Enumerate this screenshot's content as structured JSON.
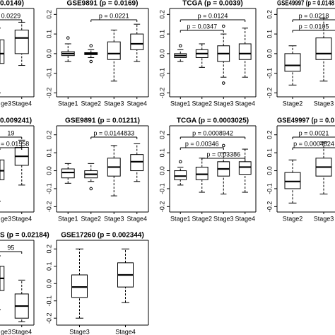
{
  "chart_data": [
    {
      "type": "box",
      "title": "0.0149)",
      "categories": [
        "ge3",
        "Stage4"
      ],
      "ylim": [
        -0.22,
        0.23
      ],
      "boxes": [
        {
          "min": -0.2,
          "q1": -0.05,
          "median": 0.0,
          "q3": 0.07,
          "max": 0.13
        },
        {
          "min": -0.06,
          "q1": 0.0,
          "median": 0.08,
          "q3": 0.12,
          "max": 0.16
        }
      ],
      "comparisons": [
        {
          "label": "0.0229",
          "between": [
            "ge3",
            "Stage4"
          ]
        }
      ]
    },
    {
      "type": "box",
      "title": "GSE9891 (p = 0.0169)",
      "categories": [
        "Stage1",
        "Stage2",
        "Stage3",
        "Stage4"
      ],
      "ylim": [
        -0.22,
        0.23
      ],
      "yticks": [
        -0.2,
        -0.1,
        {
          "value": 0,
          "label": "0.0"
        },
        0.1,
        0.2
      ],
      "boxes": [
        {
          "min": -0.04,
          "q1": -0.01,
          "median": 0.0,
          "q3": 0.01,
          "max": 0.05,
          "outliers": [
            0.08
          ]
        },
        {
          "min": -0.02,
          "q1": -0.005,
          "median": 0.0,
          "q3": 0.005,
          "max": 0.02,
          "outliers": [
            0.04,
            -0.04
          ]
        },
        {
          "min": -0.14,
          "q1": -0.03,
          "median": 0.0,
          "q3": 0.06,
          "max": 0.12
        },
        {
          "min": -0.04,
          "q1": 0.02,
          "median": 0.05,
          "q3": 0.1,
          "max": 0.15
        }
      ],
      "comparisons": [
        {
          "label": "p = 0.0221",
          "between": [
            "Stage2",
            "Stage4"
          ]
        }
      ]
    },
    {
      "type": "box",
      "title": "TCGA (p = 0.0039)",
      "categories": [
        "Stage1",
        "Stage2",
        "Stage3",
        "Stage4"
      ],
      "ylim": [
        -0.22,
        0.23
      ],
      "yticks": [
        -0.2,
        -0.1,
        {
          "value": 0,
          "label": "0.0"
        },
        0.1,
        0.2
      ],
      "boxes": [
        {
          "min": -0.04,
          "q1": -0.02,
          "median": -0.01,
          "q3": 0.0,
          "max": 0.02,
          "outliers": [
            0.04
          ]
        },
        {
          "min": -0.07,
          "q1": -0.02,
          "median": 0.0,
          "q3": 0.02,
          "max": 0.05
        },
        {
          "min": -0.12,
          "q1": -0.04,
          "median": 0.0,
          "q3": 0.04,
          "max": 0.1,
          "outliers": [
            0.14,
            -0.15
          ]
        },
        {
          "min": -0.12,
          "q1": -0.03,
          "median": 0.0,
          "q3": 0.05,
          "max": 0.13
        }
      ],
      "comparisons": [
        {
          "label": "p = 0.0124",
          "between": [
            "Stage1",
            "Stage4"
          ]
        },
        {
          "label": "p = 0.0347",
          "between": [
            "Stage1",
            "Stage3"
          ]
        }
      ]
    },
    {
      "type": "box",
      "title": "GSE49997 (p = 0.0148",
      "categories": [
        "Stage2",
        "Stage3"
      ],
      "ylim": [
        -0.22,
        0.23
      ],
      "yticks": [
        -0.2,
        -0.1,
        {
          "value": 0,
          "label": "0.0"
        },
        0.1,
        0.2
      ],
      "boxes": [
        {
          "min": -0.16,
          "q1": -0.09,
          "median": -0.06,
          "q3": 0.0,
          "max": 0.04
        },
        {
          "min": -0.14,
          "q1": -0.03,
          "median": 0.0,
          "q3": 0.08,
          "max": 0.18
        }
      ],
      "comparisons": [
        {
          "label": "p = 0.0218",
          "between": [
            "Stage2",
            "Stage3"
          ]
        },
        {
          "label": "p = 0.0105",
          "between": [
            "Stage2",
            "Stage3"
          ]
        }
      ]
    },
    {
      "type": "box",
      "title": "0.009241)",
      "categories": [
        "ge3",
        "Stage4"
      ],
      "ylim": [
        -0.23,
        0.25
      ],
      "boxes": [
        {
          "min": -0.17,
          "q1": -0.05,
          "median": 0.0,
          "q3": 0.06,
          "max": 0.12
        },
        {
          "min": -0.08,
          "q1": 0.03,
          "median": 0.08,
          "q3": 0.13,
          "max": 0.17
        }
      ],
      "comparisons": [
        {
          "label": "19",
          "between": [
            "ge3",
            "Stage4"
          ]
        },
        {
          "label": "= 0.01558",
          "between": [
            "ge3",
            "Stage4"
          ]
        }
      ]
    },
    {
      "type": "box",
      "title": "GSE9891 (p = 0.01211)",
      "categories": [
        "Stage1",
        "Stage2",
        "Stage3",
        "Stage4"
      ],
      "ylim": [
        -0.23,
        0.25
      ],
      "yticks": [
        -0.2,
        -0.1,
        {
          "value": 0,
          "label": "0.0"
        },
        0.1,
        0.2
      ],
      "boxes": [
        {
          "min": -0.07,
          "q1": -0.04,
          "median": -0.01,
          "q3": 0.01,
          "max": 0.04
        },
        {
          "min": -0.06,
          "q1": -0.04,
          "median": -0.02,
          "q3": 0.0,
          "max": 0.04,
          "outliers": [
            -0.1
          ]
        },
        {
          "min": -0.14,
          "q1": -0.03,
          "median": 0.02,
          "q3": 0.07,
          "max": 0.14
        },
        {
          "min": -0.06,
          "q1": 0.0,
          "median": 0.05,
          "q3": 0.09,
          "max": 0.15
        }
      ],
      "comparisons": [
        {
          "label": "p = 0.0144833",
          "between": [
            "Stage2",
            "Stage4"
          ]
        }
      ]
    },
    {
      "type": "box",
      "title": "TCGA (p = 0.0003025)",
      "categories": [
        "Stage1",
        "Stage2",
        "Stage3",
        "Stage4"
      ],
      "ylim": [
        -0.23,
        0.25
      ],
      "yticks": [
        -0.2,
        -0.1,
        {
          "value": 0,
          "label": "0.0"
        },
        0.1,
        0.2
      ],
      "boxes": [
        {
          "min": -0.08,
          "q1": -0.05,
          "median": -0.03,
          "q3": 0.0,
          "max": 0.02,
          "outliers": [
            0.05
          ]
        },
        {
          "min": -0.12,
          "q1": -0.05,
          "median": -0.02,
          "q3": 0.02,
          "max": 0.07
        },
        {
          "min": -0.13,
          "q1": -0.03,
          "median": 0.01,
          "q3": 0.05,
          "max": 0.1,
          "outliers": [
            0.14
          ]
        },
        {
          "min": -0.12,
          "q1": -0.02,
          "median": 0.02,
          "q3": 0.05,
          "max": 0.12
        }
      ],
      "comparisons": [
        {
          "label": "p = 0.0008942",
          "between": [
            "Stage1",
            "Stage4"
          ]
        },
        {
          "label": "p = 0.00346",
          "between": [
            "Stage1",
            "Stage3"
          ]
        },
        {
          "label": "p = 0.03386",
          "between": [
            "Stage2",
            "Stage4"
          ]
        }
      ]
    },
    {
      "type": "box",
      "title": "GSE49997 (p = 0.0",
      "categories": [
        "Stage2",
        "Stage3"
      ],
      "ylim": [
        -0.23,
        0.25
      ],
      "yticks": [
        -0.2,
        -0.1,
        {
          "value": 0,
          "label": "0.0"
        },
        0.1,
        0.2
      ],
      "boxes": [
        {
          "min": -0.18,
          "q1": -0.1,
          "median": -0.06,
          "q3": -0.01,
          "max": 0.06
        },
        {
          "min": -0.13,
          "q1": -0.03,
          "median": 0.02,
          "q3": 0.07,
          "max": 0.16
        }
      ],
      "comparisons": [
        {
          "label": "p = 0.0021",
          "between": [
            "Stage2",
            "Stage3"
          ]
        },
        {
          "label": "p = 0.0004824",
          "between": [
            "Stage2",
            "Stage3"
          ]
        }
      ]
    },
    {
      "type": "box",
      "title": "S (p = 0.02184)",
      "categories": [
        "ge3",
        "Stage4"
      ],
      "ylim": [
        -0.24,
        0.25
      ],
      "boxes": [
        {
          "min": -0.15,
          "q1": -0.04,
          "median": 0.03,
          "q3": 0.1,
          "max": 0.16
        },
        {
          "min": -0.22,
          "q1": -0.2,
          "median": -0.13,
          "q3": -0.06,
          "max": 0.02
        }
      ],
      "comparisons": [
        {
          "label": "95",
          "between": [
            "ge3",
            "Stage4"
          ]
        }
      ]
    },
    {
      "type": "box",
      "title": "GSE17260 (p = 0.002344)",
      "categories": [
        "Stage3",
        "Stage4"
      ],
      "ylim": [
        -0.24,
        0.25
      ],
      "yticks": [
        -0.2,
        -0.1,
        {
          "value": 0,
          "label": "0.0"
        },
        0.1,
        0.2
      ],
      "boxes": [
        {
          "min": -0.2,
          "q1": -0.08,
          "median": -0.02,
          "q3": 0.05,
          "max": 0.2
        },
        {
          "min": -0.11,
          "q1": -0.02,
          "median": 0.05,
          "q3": 0.12,
          "max": 0.2
        }
      ]
    }
  ]
}
